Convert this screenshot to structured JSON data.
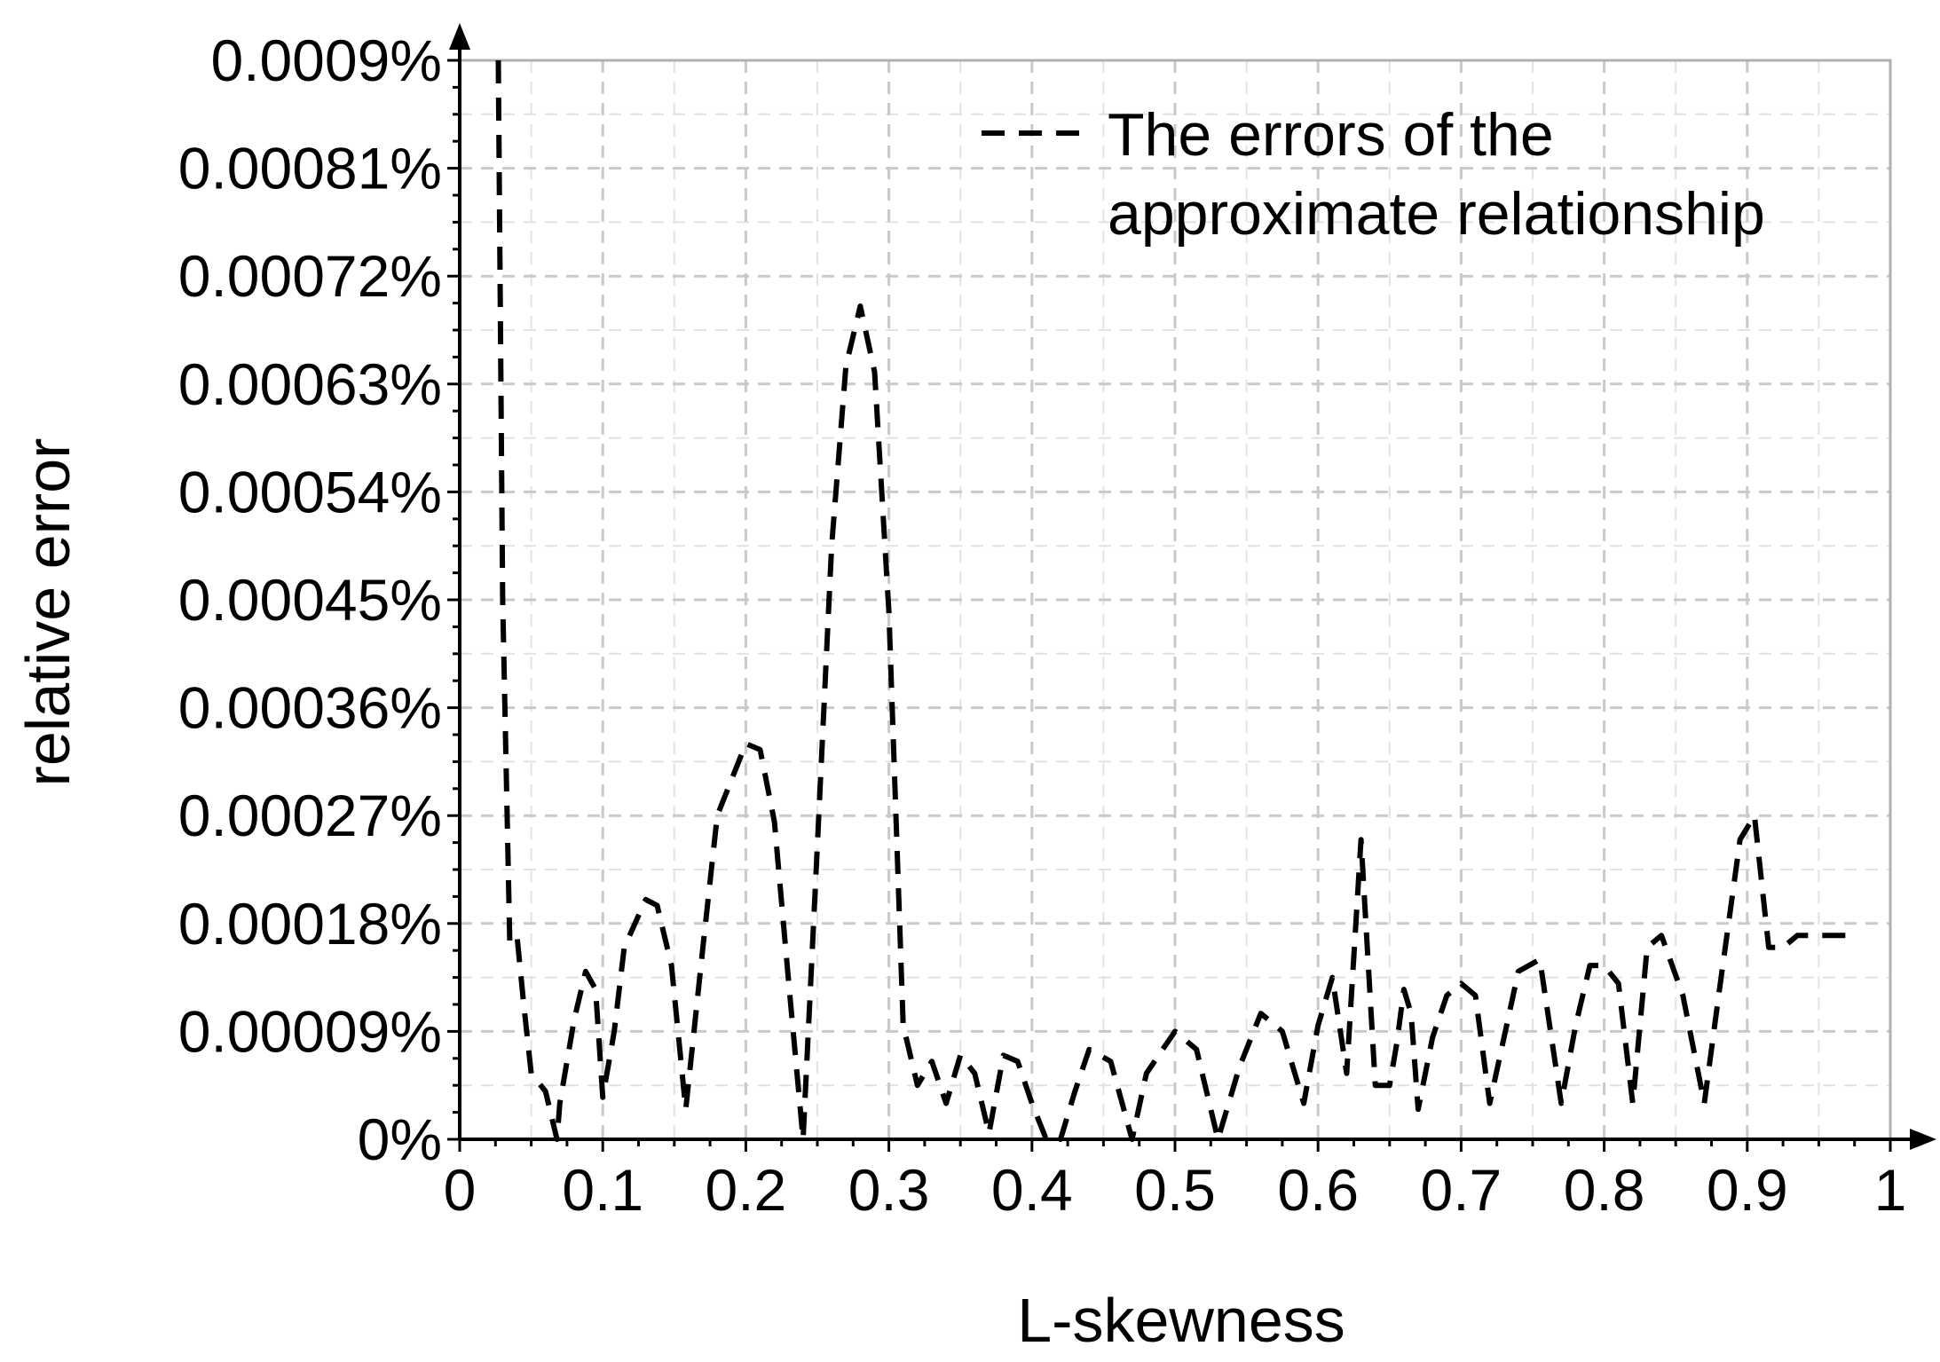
{
  "chart_data": {
    "type": "line",
    "xlabel": "L-skewness",
    "ylabel": "relative error",
    "xlim": [
      0,
      1
    ],
    "ylim": [
      0,
      0.0009
    ],
    "x_ticks": [
      "0",
      "0.1",
      "0.2",
      "0.3",
      "0.4",
      "0.5",
      "0.6",
      "0.7",
      "0.8",
      "0.9",
      "1"
    ],
    "y_ticks": [
      "0%",
      "0.00009%",
      "0.00018%",
      "0.00027%",
      "0.00036%",
      "0.00045%",
      "0.00054%",
      "0.00063%",
      "0.00072%",
      "0.00081%",
      "0.0009%"
    ],
    "grid": true,
    "legend_position": "top-right",
    "legend": [
      "The errors of the",
      "approximate relationship"
    ],
    "series": [
      {
        "name": "The errors of the approximate relationship",
        "line_style": "dashed",
        "color": "#000000",
        "x": [
          0.027,
          0.03,
          0.035,
          0.04,
          0.045,
          0.05,
          0.06,
          0.068,
          0.07,
          0.08,
          0.088,
          0.095,
          0.1,
          0.108,
          0.115,
          0.13,
          0.138,
          0.148,
          0.158,
          0.17,
          0.18,
          0.2,
          0.21,
          0.22,
          0.23,
          0.24,
          0.25,
          0.26,
          0.27,
          0.28,
          0.29,
          0.3,
          0.31,
          0.32,
          0.33,
          0.34,
          0.35,
          0.36,
          0.37,
          0.38,
          0.39,
          0.4,
          0.41,
          0.42,
          0.43,
          0.44,
          0.455,
          0.47,
          0.48,
          0.5,
          0.515,
          0.53,
          0.545,
          0.56,
          0.575,
          0.59,
          0.6,
          0.61,
          0.62,
          0.63,
          0.64,
          0.65,
          0.655,
          0.66,
          0.665,
          0.67,
          0.68,
          0.69,
          0.7,
          0.71,
          0.72,
          0.74,
          0.755,
          0.77,
          0.78,
          0.79,
          0.8,
          0.81,
          0.82,
          0.83,
          0.84,
          0.855,
          0.87,
          0.88,
          0.895,
          0.905,
          0.915,
          0.925,
          0.935,
          0.945,
          0.955,
          0.965,
          0.975
        ],
        "y": [
          0.0009,
          0.00045,
          0.000165,
          0.00017,
          0.00011,
          5.5e-05,
          4e-05,
          0.0,
          3e-05,
          0.0001,
          0.00014,
          0.000125,
          3.5e-05,
          9e-05,
          0.00016,
          0.0002,
          0.000195,
          0.000145,
          2.5e-05,
          0.00016,
          0.00027,
          0.00033,
          0.000325,
          0.000265,
          0.00013,
          0.0,
          0.000245,
          0.000495,
          0.000645,
          0.000695,
          0.00064,
          0.00044,
          9.5e-05,
          4.5e-05,
          6.5e-05,
          3e-05,
          7e-05,
          5.5e-05,
          5e-06,
          7e-05,
          6.5e-05,
          3e-05,
          0.0,
          0.0,
          4e-05,
          7.5e-05,
          6.5e-05,
          0.0,
          5.5e-05,
          9e-05,
          7.5e-05,
          0.0,
          6e-05,
          0.000105,
          9e-05,
          3e-05,
          9.5e-05,
          0.000135,
          5.5e-05,
          0.00025,
          4.5e-05,
          4.5e-05,
          8e-05,
          0.000125,
          0.000105,
          2.5e-05,
          8.5e-05,
          0.00012,
          0.00013,
          0.00012,
          3e-05,
          0.00014,
          0.00015,
          3e-05,
          9.5e-05,
          0.000145,
          0.000145,
          0.00013,
          3e-05,
          0.00016,
          0.00017,
          0.00012,
          3e-05,
          0.00012,
          0.00025,
          0.00027,
          0.00016,
          0.00016,
          0.00017,
          0.00017,
          0.00017,
          0.00017,
          0.00017
        ]
      }
    ]
  }
}
